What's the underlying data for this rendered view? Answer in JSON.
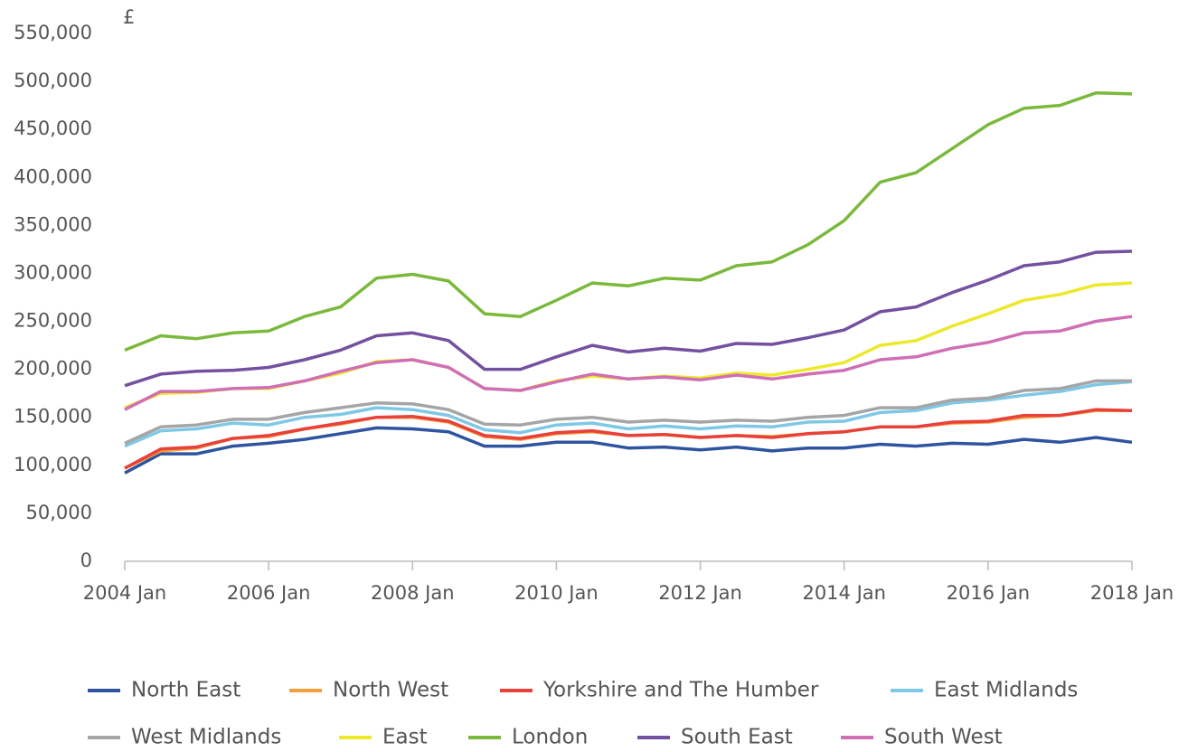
{
  "chart_data": {
    "type": "line",
    "yunit": "£",
    "x": [
      2004,
      2004.5,
      2005,
      2005.5,
      2006,
      2006.5,
      2007,
      2007.5,
      2008,
      2008.5,
      2009,
      2009.5,
      2010,
      2010.5,
      2011,
      2011.5,
      2012,
      2012.5,
      2013,
      2013.5,
      2014,
      2014.5,
      2015,
      2015.5,
      2016,
      2016.5,
      2017,
      2017.5,
      2018
    ],
    "xlim": [
      2004,
      2018
    ],
    "xticks": [
      {
        "value": 2004,
        "label": "2004 Jan"
      },
      {
        "value": 2006,
        "label": "2006 Jan"
      },
      {
        "value": 2008,
        "label": "2008 Jan"
      },
      {
        "value": 2010,
        "label": "2010 Jan"
      },
      {
        "value": 2012,
        "label": "2012 Jan"
      },
      {
        "value": 2014,
        "label": "2014 Jan"
      },
      {
        "value": 2016,
        "label": "2016 Jan"
      },
      {
        "value": 2018,
        "label": "2018 Jan"
      }
    ],
    "ylim": [
      0,
      550000
    ],
    "yticks": [
      0,
      {
        "value": 50000,
        "label": "50,000"
      },
      {
        "value": 100000,
        "label": "100,000"
      },
      {
        "value": 150000,
        "label": "150,000"
      },
      {
        "value": 200000,
        "label": "200,000"
      },
      {
        "value": 250000,
        "label": "250,000"
      },
      {
        "value": 300000,
        "label": "300,000"
      },
      {
        "value": 350000,
        "label": "350,000"
      },
      {
        "value": 400000,
        "label": "400,000"
      },
      {
        "value": 450000,
        "label": "450,000"
      },
      {
        "value": 500000,
        "label": "500,000"
      },
      {
        "value": 550000,
        "label": "550,000"
      }
    ],
    "series": [
      {
        "name": "North East",
        "color": "#2e54a0",
        "values": [
          92000,
          112000,
          112000,
          120000,
          123000,
          127000,
          133000,
          139000,
          138000,
          135000,
          120000,
          120000,
          124000,
          124000,
          118000,
          119000,
          116000,
          119000,
          115000,
          118000,
          118000,
          122000,
          120000,
          123000,
          122000,
          127000,
          124000,
          129000,
          124000
        ]
      },
      {
        "name": "North West",
        "color": "#f4a03c",
        "values": [
          97000,
          115000,
          118000,
          128000,
          130000,
          138000,
          143000,
          150000,
          150000,
          145000,
          130000,
          127000,
          133000,
          135000,
          131000,
          132000,
          129000,
          131000,
          130000,
          133000,
          135000,
          140000,
          140000,
          144000,
          145000,
          150000,
          152000,
          157000,
          157000
        ]
      },
      {
        "name": "Yorkshire and The Humber",
        "color": "#e8413a",
        "values": [
          97000,
          117000,
          119000,
          128000,
          131000,
          138000,
          144000,
          150000,
          151000,
          146000,
          131000,
          128000,
          134000,
          136000,
          131000,
          132000,
          129000,
          131000,
          129000,
          133000,
          135000,
          140000,
          140000,
          145000,
          146000,
          152000,
          152000,
          158000,
          157000
        ]
      },
      {
        "name": "East Midlands",
        "color": "#7ec8e6",
        "values": [
          120000,
          136000,
          138000,
          144000,
          142000,
          150000,
          153000,
          160000,
          158000,
          152000,
          137000,
          134000,
          142000,
          144000,
          138000,
          141000,
          138000,
          141000,
          140000,
          145000,
          146000,
          155000,
          157000,
          165000,
          168000,
          173000,
          177000,
          184000,
          187000
        ]
      },
      {
        "name": "West Midlands",
        "color": "#a5a5a5",
        "values": [
          123000,
          140000,
          142000,
          148000,
          148000,
          155000,
          160000,
          165000,
          164000,
          158000,
          143000,
          142000,
          148000,
          150000,
          145000,
          147000,
          145000,
          147000,
          146000,
          150000,
          152000,
          160000,
          160000,
          168000,
          170000,
          178000,
          180000,
          188000,
          188000
        ]
      },
      {
        "name": "East",
        "color": "#ede82a",
        "values": [
          160000,
          175000,
          176000,
          180000,
          180000,
          188000,
          196000,
          208000,
          210000,
          202000,
          180000,
          178000,
          188000,
          193000,
          190000,
          193000,
          191000,
          196000,
          194000,
          200000,
          207000,
          225000,
          230000,
          245000,
          258000,
          272000,
          278000,
          288000,
          290000
        ]
      },
      {
        "name": "London",
        "color": "#7ab93c",
        "values": [
          220000,
          235000,
          232000,
          238000,
          240000,
          255000,
          265000,
          295000,
          299000,
          292000,
          258000,
          255000,
          272000,
          290000,
          287000,
          295000,
          293000,
          308000,
          312000,
          330000,
          355000,
          395000,
          405000,
          430000,
          455000,
          472000,
          475000,
          488000,
          487000
        ]
      },
      {
        "name": "South East",
        "color": "#7451a0",
        "values": [
          183000,
          195000,
          198000,
          199000,
          202000,
          210000,
          220000,
          235000,
          238000,
          230000,
          200000,
          200000,
          213000,
          225000,
          218000,
          222000,
          219000,
          227000,
          226000,
          233000,
          241000,
          260000,
          265000,
          280000,
          293000,
          308000,
          312000,
          322000,
          323000
        ]
      },
      {
        "name": "South West",
        "color": "#cf6fb5",
        "values": [
          158000,
          177000,
          177000,
          180000,
          181000,
          188000,
          198000,
          207000,
          210000,
          202000,
          180000,
          178000,
          187000,
          195000,
          190000,
          192000,
          189000,
          194000,
          190000,
          195000,
          199000,
          210000,
          213000,
          222000,
          228000,
          238000,
          240000,
          250000,
          255000
        ]
      }
    ]
  }
}
